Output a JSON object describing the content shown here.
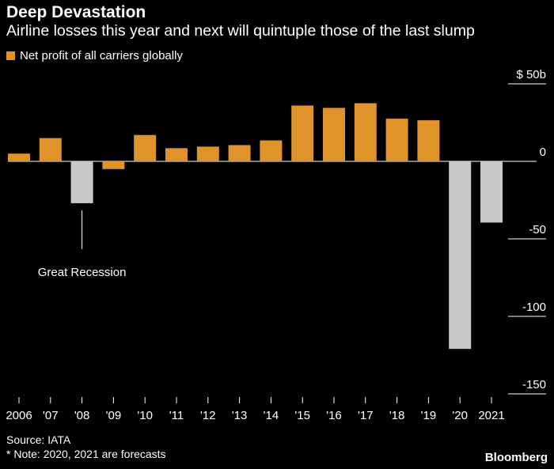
{
  "title": "Deep Devastation",
  "subtitle": "Airline losses this year and next will quintuple those of the last slump",
  "legend": {
    "label": "Net profit of all carriers globally"
  },
  "colors": {
    "positive": "#e0922b",
    "negative": "#c8c8c8",
    "background": "#000000",
    "grid": "#ffffff"
  },
  "chart_data": {
    "type": "bar",
    "title": "Deep Devastation",
    "ylabel": "$ billions",
    "ylim": [
      -150,
      50
    ],
    "yticks": [
      50,
      0,
      -50,
      -100,
      -150
    ],
    "ytick_labels": [
      "$ 50b",
      "0",
      "-50",
      "-100",
      "-150"
    ],
    "categories": [
      "2006",
      "'07",
      "'08",
      "'09",
      "'10",
      "'11",
      "'12",
      "'13",
      "'14",
      "'15",
      "'16",
      "'17",
      "'18",
      "'19",
      "'20",
      "2021"
    ],
    "values": [
      5,
      15,
      -27,
      -5,
      17,
      8.5,
      9.5,
      10.5,
      13.5,
      36,
      34.5,
      37.5,
      27.5,
      26.5,
      -121,
      -39.5
    ],
    "annotation": {
      "label": "Great Recession",
      "category": "'08"
    }
  },
  "footer": {
    "source": "Source: IATA",
    "note": "* Note: 2020, 2021 are forecasts",
    "brand": "Bloomberg"
  }
}
